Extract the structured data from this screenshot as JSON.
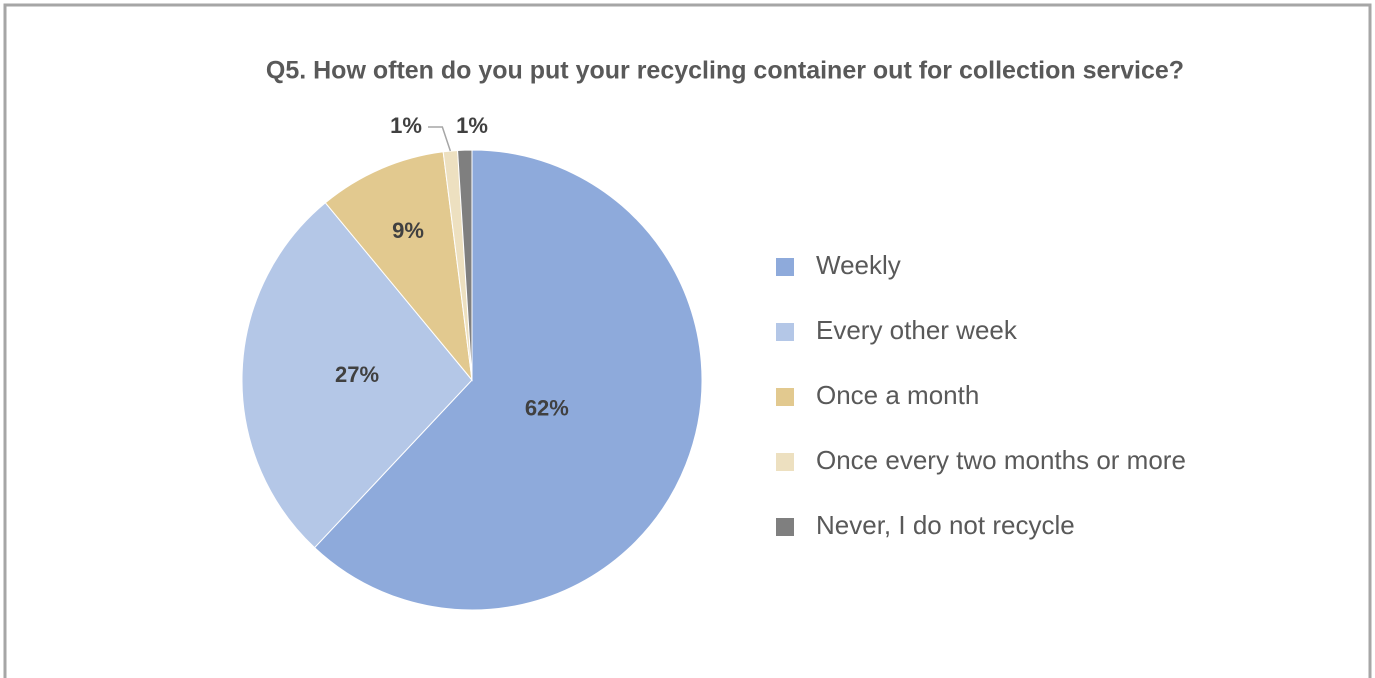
{
  "chart_data": {
    "type": "pie",
    "title": "Q5. How often do you put your recycling container out for collection service?",
    "categories": [
      "Weekly",
      "Every other week",
      "Once a month",
      "Once every two months or more",
      "Never, I do not recycle"
    ],
    "values": [
      62,
      27,
      9,
      1,
      1
    ],
    "value_labels": [
      "62%",
      "27%",
      "9%",
      "1%",
      "1%"
    ],
    "colors": [
      "#8eaadb",
      "#b4c7e7",
      "#e2c98f",
      "#ede0c0",
      "#7f7f7f"
    ],
    "legend": "right"
  }
}
